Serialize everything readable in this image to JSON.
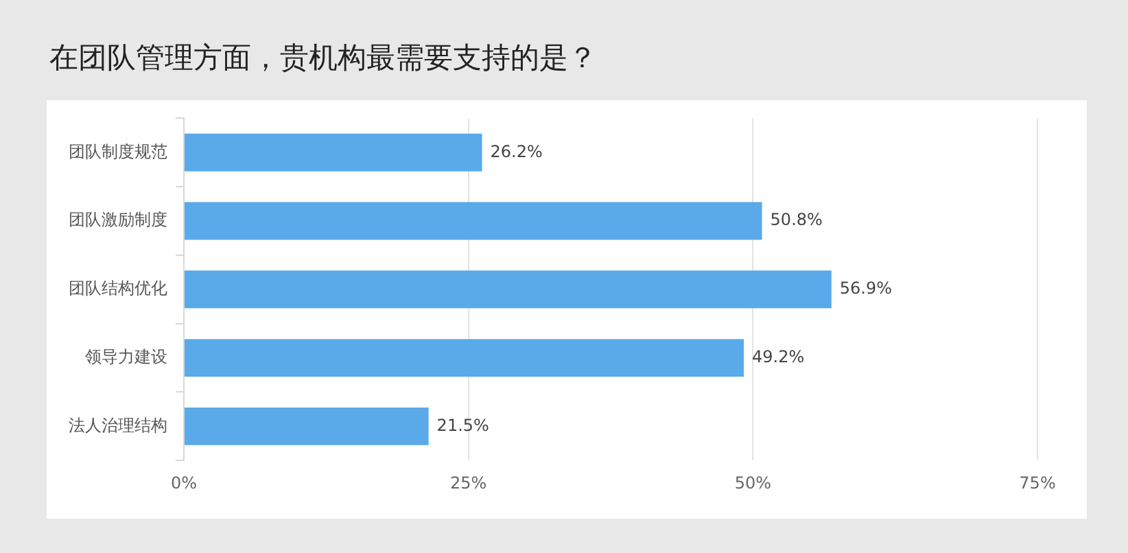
{
  "chart_data": {
    "type": "bar",
    "orientation": "horizontal",
    "title": "在团队管理方面，贵机构最需要支持的是？",
    "categories": [
      "团队制度规范",
      "团队激励制度",
      "团队结构优化",
      "领导力建设",
      "法人治理结构"
    ],
    "values": [
      26.2,
      50.8,
      56.9,
      49.2,
      21.5
    ],
    "value_labels": [
      "26.2%",
      "50.8%",
      "56.9%",
      "49.2%",
      "21.5%"
    ],
    "color": "#5aaaea",
    "xlim": [
      0,
      75
    ],
    "xticks": [
      {
        "value": 0,
        "label": "0%"
      },
      {
        "value": 25,
        "label": "25%"
      },
      {
        "value": 50,
        "label": "50%"
      },
      {
        "value": 75,
        "label": "75%"
      }
    ],
    "grid": "x",
    "legend": false
  }
}
